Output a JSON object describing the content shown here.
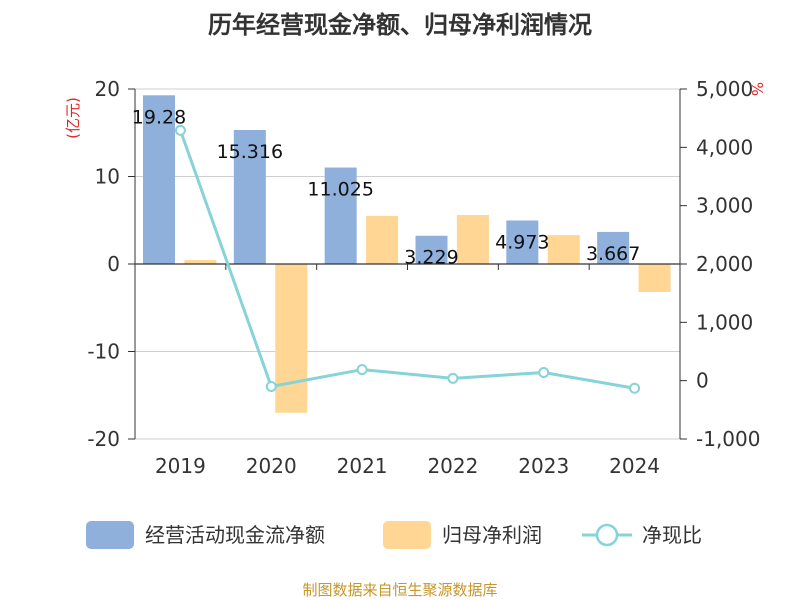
{
  "title": "历年经营现金净额、归母净利润情况",
  "footer": "制图数据来自恒生聚源数据库",
  "left_unit": "(亿元)",
  "right_unit": "%",
  "colors": {
    "cash": "#8eb0db",
    "profit": "#ffd694",
    "ratio": "#86d3d8",
    "title": "#333333",
    "unit": "#e0262a",
    "footer": "#c8962a"
  },
  "chart_data": {
    "type": "bar",
    "title": "历年经营现金净额、归母净利润情况",
    "categories": [
      "2019",
      "2020",
      "2021",
      "2022",
      "2023",
      "2024"
    ],
    "series": [
      {
        "name": "经营活动现金流净额",
        "type": "bar",
        "axis": "left",
        "values": [
          19.28,
          15.316,
          11.025,
          3.229,
          4.973,
          3.667
        ],
        "labels": [
          "19.28",
          "15.316",
          "11.025",
          "3.229",
          "4.973",
          "3.667"
        ]
      },
      {
        "name": "归母净利润",
        "type": "bar",
        "axis": "left",
        "values": [
          0.45,
          -17.0,
          5.5,
          5.6,
          3.3,
          -3.2
        ]
      },
      {
        "name": "净现比",
        "type": "line",
        "axis": "right",
        "values": [
          4290,
          -100,
          190,
          40,
          140,
          -130
        ]
      }
    ],
    "left_axis": {
      "ylim": [
        -20,
        20
      ],
      "ticks": [
        "20",
        "10",
        "0",
        "-10",
        "-20"
      ],
      "tick_values": [
        20,
        10,
        0,
        -10,
        -20
      ]
    },
    "right_axis": {
      "ylim": [
        -1000,
        5000
      ],
      "ticks": [
        "5,000",
        "4,000",
        "3,000",
        "2,000",
        "1,000",
        "0",
        "-1,000"
      ],
      "tick_values": [
        5000,
        4000,
        3000,
        2000,
        1000,
        0,
        -1000
      ]
    },
    "grid": true,
    "legend_position": "bottom"
  }
}
